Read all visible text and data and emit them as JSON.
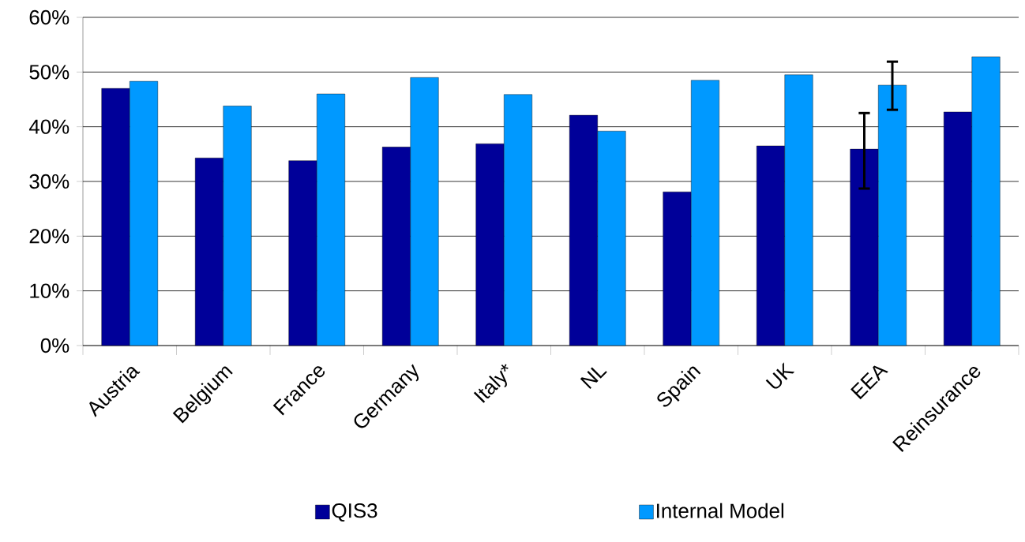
{
  "chart_data": {
    "type": "bar",
    "categories": [
      "Austria",
      "Belgium",
      "France",
      "Germany",
      "Italy*",
      "NL",
      "Spain",
      "UK",
      "EEA",
      "Reinsurance"
    ],
    "series": [
      {
        "name": "QIS3",
        "color": "#000099",
        "values": [
          47.0,
          34.3,
          33.8,
          36.3,
          36.9,
          42.1,
          28.1,
          36.5,
          35.9,
          42.7
        ],
        "errors": [
          null,
          null,
          null,
          null,
          null,
          null,
          null,
          null,
          [
            28.7,
            42.5
          ],
          null
        ]
      },
      {
        "name": "Internal Model",
        "color": "#0099ff",
        "values": [
          48.3,
          43.8,
          46.0,
          49.0,
          45.9,
          39.2,
          48.5,
          49.5,
          47.6,
          52.8
        ],
        "errors": [
          null,
          null,
          null,
          null,
          null,
          null,
          null,
          null,
          [
            43.1,
            51.9
          ],
          null
        ]
      }
    ],
    "ylim": [
      0,
      60
    ],
    "yticks": [
      {
        "value": 0,
        "label": "0%"
      },
      {
        "value": 10,
        "label": "10%"
      },
      {
        "value": 20,
        "label": "20%"
      },
      {
        "value": 30,
        "label": "30%"
      },
      {
        "value": 40,
        "label": "40%"
      },
      {
        "value": 50,
        "label": "50%"
      },
      {
        "value": 60,
        "label": "60%"
      }
    ],
    "grid": "y",
    "legend": "bottom"
  }
}
